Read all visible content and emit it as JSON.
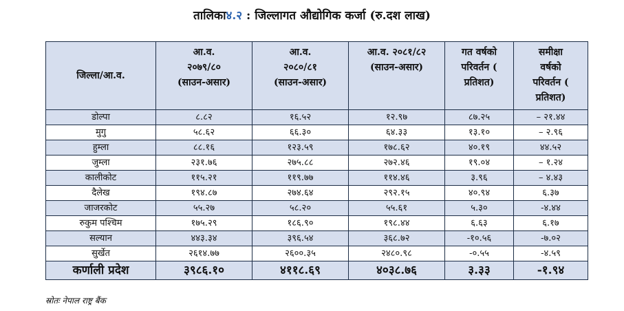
{
  "title": {
    "prefix": "तालिका",
    "number": "४.२",
    "text": ": जिल्लागत औद्योगिक कर्जा (रु.दश लाख)"
  },
  "table": {
    "headers": [
      [
        "जिल्ला/आ.व."
      ],
      [
        "आ.व.",
        "२०७९/८०",
        "(साउन-असार)"
      ],
      [
        "आ.व.",
        "२०८०/८१",
        "(साउन-असार)"
      ],
      [
        "आ.व. २०८१/८२",
        "(साउन-असार)"
      ],
      [
        "गत वर्षको",
        "परिवर्तन (",
        "प्रतिशत)"
      ],
      [
        "समीक्षा",
        "वर्षको",
        "परिवर्तन (",
        "प्रतिशत)"
      ]
    ],
    "rows": [
      [
        "डोल्पा",
        "८.८२",
        "१६.५२",
        "१२.९७",
        "८७.२५",
        "– २१.४४"
      ],
      [
        "मुगु",
        "५८.६२",
        "६६.३०",
        "६४.३३",
        "१३.१०",
        "– २.९६"
      ],
      [
        "हुम्ला",
        "८८.१६",
        "१२३.५९",
        "१७८.६२",
        "४०.१९",
        "४४.५२"
      ],
      [
        "जुम्ला",
        "२३१.७६",
        "२७५.८८",
        "२७२.४६",
        "१९.०४",
        "– १.२४"
      ],
      [
        "कालीकोट",
        "११५.२१",
        "११९.७७",
        "११४.४६",
        "३.९६",
        "– ४.४३"
      ],
      [
        "दैलेख",
        "१९४.८७",
        "२७४.६४",
        "२९२.१५",
        "४०.९४",
        "६.३७"
      ],
      [
        "जाजरकोट",
        "५५.२७",
        "५८.२०",
        "५५.६१",
        "५.३०",
        "-४.४४"
      ],
      [
        "रुकुम पश्चिम",
        "१७५.२९",
        "१८६.९०",
        "१९८.४४",
        "६.६३",
        "६.१७"
      ],
      [
        "सल्यान",
        "४४३.३४",
        "३९६.५४",
        "३६८.७२",
        "-१०.५६",
        "-७.०२"
      ],
      [
        "सुर्खेत",
        "२६१४.७७",
        "२६००.३५",
        "२४८०.९८",
        "-०.५५",
        "-४.५९"
      ]
    ],
    "total": [
      "कर्णाली प्रदेश",
      "३९८६.१०",
      "४११८.६९",
      "४०३८.७६",
      "३.३३",
      "-१.९४"
    ]
  },
  "source": "स्रोतः नेपाल राष्ट्र बैंक"
}
